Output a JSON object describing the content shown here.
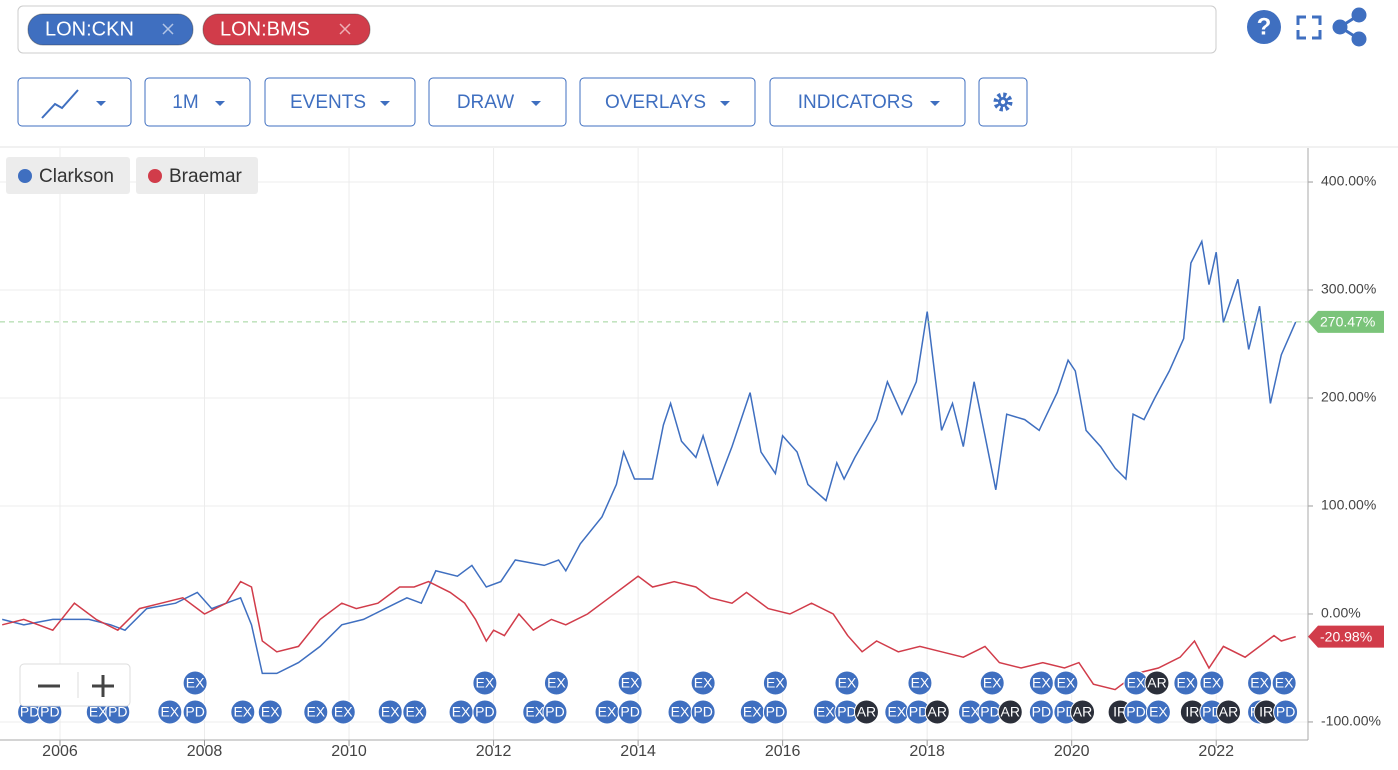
{
  "toolbar": {
    "tickers": [
      {
        "label": "LON:CKN",
        "color": "#3f6fc0"
      },
      {
        "label": "LON:BMS",
        "color": "#d13c4a"
      }
    ],
    "buttons": [
      "1M",
      "EVENTS",
      "DRAW",
      "OVERLAYS",
      "INDICATORS"
    ]
  },
  "chart_data": {
    "type": "line",
    "xlim": [
      2005.17,
      2023.27
    ],
    "xticks": [
      2006,
      2008,
      2010,
      2012,
      2014,
      2016,
      2018,
      2020,
      2022
    ],
    "ylim": [
      -116.7,
      431.5
    ],
    "yticks": [
      {
        "value": -100,
        "label": "-100.00%"
      },
      {
        "value": 0,
        "label": "0.00%"
      },
      {
        "value": 100,
        "label": "100.00%"
      },
      {
        "value": 200,
        "label": "200.00%"
      },
      {
        "value": 300,
        "label": "300.00%"
      },
      {
        "value": 400,
        "label": "400.00%"
      }
    ],
    "grid": true,
    "legend": "top-left",
    "series": [
      {
        "name": "Clarkson",
        "color": "#3f6fc0",
        "last_label": "270.47%",
        "reference_line": true,
        "x": [
          2005.2,
          2005.5,
          2005.9,
          2006.4,
          2006.7,
          2006.9,
          2007.2,
          2007.6,
          2007.9,
          2008.1,
          2008.5,
          2008.65,
          2008.8,
          2009.0,
          2009.3,
          2009.6,
          2009.9,
          2010.2,
          2010.5,
          2010.8,
          2011.0,
          2011.2,
          2011.5,
          2011.7,
          2011.9,
          2012.1,
          2012.3,
          2012.7,
          2012.9,
          2013.0,
          2013.2,
          2013.5,
          2013.7,
          2013.8,
          2013.95,
          2014.2,
          2014.35,
          2014.45,
          2014.6,
          2014.8,
          2014.9,
          2015.1,
          2015.3,
          2015.55,
          2015.7,
          2015.9,
          2016.0,
          2016.2,
          2016.35,
          2016.6,
          2016.75,
          2016.85,
          2017.0,
          2017.3,
          2017.45,
          2017.65,
          2017.85,
          2018.0,
          2018.2,
          2018.35,
          2018.5,
          2018.65,
          2018.8,
          2018.95,
          2019.1,
          2019.35,
          2019.55,
          2019.8,
          2019.95,
          2020.05,
          2020.2,
          2020.4,
          2020.6,
          2020.75,
          2020.85,
          2021.0,
          2021.15,
          2021.35,
          2021.55,
          2021.65,
          2021.8,
          2021.9,
          2022.0,
          2022.1,
          2022.3,
          2022.45,
          2022.6,
          2022.75,
          2022.9,
          2023.1
        ],
        "values": [
          -5,
          -10,
          -5,
          -5,
          -10,
          -15,
          5,
          10,
          20,
          5,
          15,
          -10,
          -55,
          -55,
          -45,
          -30,
          -10,
          -5,
          5,
          15,
          10,
          40,
          35,
          45,
          25,
          30,
          50,
          45,
          50,
          40,
          65,
          90,
          120,
          150,
          125,
          125,
          175,
          195,
          160,
          145,
          165,
          120,
          155,
          205,
          150,
          130,
          165,
          150,
          120,
          105,
          140,
          125,
          145,
          180,
          215,
          185,
          215,
          280,
          170,
          195,
          155,
          215,
          165,
          115,
          185,
          180,
          170,
          205,
          235,
          225,
          170,
          155,
          135,
          125,
          185,
          180,
          200,
          225,
          255,
          325,
          345,
          305,
          335,
          270,
          310,
          245,
          285,
          195,
          240,
          270.47
        ]
      },
      {
        "name": "Braemar",
        "color": "#d13c4a",
        "last_label": "-20.98%",
        "x": [
          2005.2,
          2005.5,
          2005.9,
          2006.2,
          2006.5,
          2006.8,
          2007.1,
          2007.4,
          2007.7,
          2008.0,
          2008.3,
          2008.5,
          2008.65,
          2008.8,
          2009.0,
          2009.3,
          2009.6,
          2009.9,
          2010.1,
          2010.4,
          2010.7,
          2010.9,
          2011.1,
          2011.4,
          2011.6,
          2011.75,
          2011.9,
          2012.0,
          2012.15,
          2012.35,
          2012.55,
          2012.8,
          2013.0,
          2013.3,
          2013.6,
          2013.9,
          2014.0,
          2014.2,
          2014.5,
          2014.8,
          2015.0,
          2015.3,
          2015.5,
          2015.8,
          2016.1,
          2016.4,
          2016.7,
          2016.9,
          2017.1,
          2017.3,
          2017.6,
          2017.9,
          2018.2,
          2018.5,
          2018.8,
          2019.0,
          2019.3,
          2019.6,
          2019.9,
          2020.1,
          2020.3,
          2020.6,
          2020.9,
          2021.2,
          2021.5,
          2021.7,
          2021.9,
          2022.1,
          2022.4,
          2022.6,
          2022.8,
          2022.9,
          2023.1
        ],
        "values": [
          -10,
          -5,
          -15,
          10,
          -5,
          -15,
          5,
          10,
          15,
          0,
          10,
          30,
          25,
          -25,
          -35,
          -30,
          -5,
          10,
          5,
          10,
          25,
          25,
          30,
          20,
          10,
          -5,
          -25,
          -15,
          -20,
          0,
          -15,
          -5,
          -10,
          0,
          15,
          30,
          35,
          25,
          30,
          25,
          15,
          10,
          20,
          5,
          0,
          10,
          0,
          -20,
          -35,
          -25,
          -35,
          -30,
          -35,
          -40,
          -30,
          -45,
          -50,
          -45,
          -50,
          -45,
          -65,
          -70,
          -55,
          -50,
          -40,
          -25,
          -50,
          -30,
          -40,
          -30,
          -20,
          -25,
          -20.98
        ]
      }
    ],
    "events": {
      "top": [
        {
          "label": "EX",
          "x": 2007.87
        },
        {
          "label": "EX",
          "x": 2011.88
        },
        {
          "label": "EX",
          "x": 2012.87
        },
        {
          "label": "EX",
          "x": 2013.89
        },
        {
          "label": "EX",
          "x": 2014.9
        },
        {
          "label": "EX",
          "x": 2015.9
        },
        {
          "label": "EX",
          "x": 2016.89
        },
        {
          "label": "EX",
          "x": 2017.9
        },
        {
          "label": "EX",
          "x": 2018.9
        },
        {
          "label": "EX",
          "x": 2019.58
        },
        {
          "label": "EX",
          "x": 2019.92
        },
        {
          "label": "EX",
          "x": 2020.89
        },
        {
          "label": "AR",
          "x": 2021.18
        },
        {
          "label": "EX",
          "x": 2021.58
        },
        {
          "label": "EX",
          "x": 2021.94
        },
        {
          "label": "EX",
          "x": 2022.6
        },
        {
          "label": "EX",
          "x": 2022.94
        }
      ],
      "bottom": [
        {
          "label": "PD",
          "x": 2005.58
        },
        {
          "label": "PD",
          "x": 2005.86
        },
        {
          "label": "EX",
          "x": 2006.53
        },
        {
          "label": "PD",
          "x": 2006.8
        },
        {
          "label": "EX",
          "x": 2007.52
        },
        {
          "label": "PD",
          "x": 2007.87
        },
        {
          "label": "EX",
          "x": 2008.53
        },
        {
          "label": "EX",
          "x": 2008.91
        },
        {
          "label": "EX",
          "x": 2009.54
        },
        {
          "label": "EX",
          "x": 2009.92
        },
        {
          "label": "EX",
          "x": 2010.57
        },
        {
          "label": "EX",
          "x": 2010.91
        },
        {
          "label": "EX",
          "x": 2011.55
        },
        {
          "label": "PD",
          "x": 2011.88
        },
        {
          "label": "EX",
          "x": 2012.57
        },
        {
          "label": "PD",
          "x": 2012.85
        },
        {
          "label": "EX",
          "x": 2013.57
        },
        {
          "label": "PD",
          "x": 2013.89
        },
        {
          "label": "EX",
          "x": 2014.58
        },
        {
          "label": "PD",
          "x": 2014.9
        },
        {
          "label": "EX",
          "x": 2015.58
        },
        {
          "label": "PD",
          "x": 2015.9
        },
        {
          "label": "EX",
          "x": 2016.59
        },
        {
          "label": "PD",
          "x": 2016.89
        },
        {
          "label": "AR",
          "x": 2017.16
        },
        {
          "label": "EX",
          "x": 2017.58
        },
        {
          "label": "PD",
          "x": 2017.88
        },
        {
          "label": "AR",
          "x": 2018.14
        },
        {
          "label": "EX",
          "x": 2018.6
        },
        {
          "label": "PD",
          "x": 2018.87
        },
        {
          "label": "AR",
          "x": 2019.15
        },
        {
          "label": "PD",
          "x": 2019.58
        },
        {
          "label": "PD",
          "x": 2019.92
        },
        {
          "label": "AR",
          "x": 2020.15
        },
        {
          "label": "IR",
          "x": 2020.67
        },
        {
          "label": "PD",
          "x": 2020.89
        },
        {
          "label": "EX",
          "x": 2021.2
        },
        {
          "label": "IR",
          "x": 2021.67
        },
        {
          "label": "PD",
          "x": 2021.94
        },
        {
          "label": "AR",
          "x": 2022.17
        },
        {
          "label": "PD",
          "x": 2022.6
        },
        {
          "label": "IR",
          "x": 2022.69
        },
        {
          "label": "PD",
          "x": 2022.96
        }
      ]
    }
  }
}
